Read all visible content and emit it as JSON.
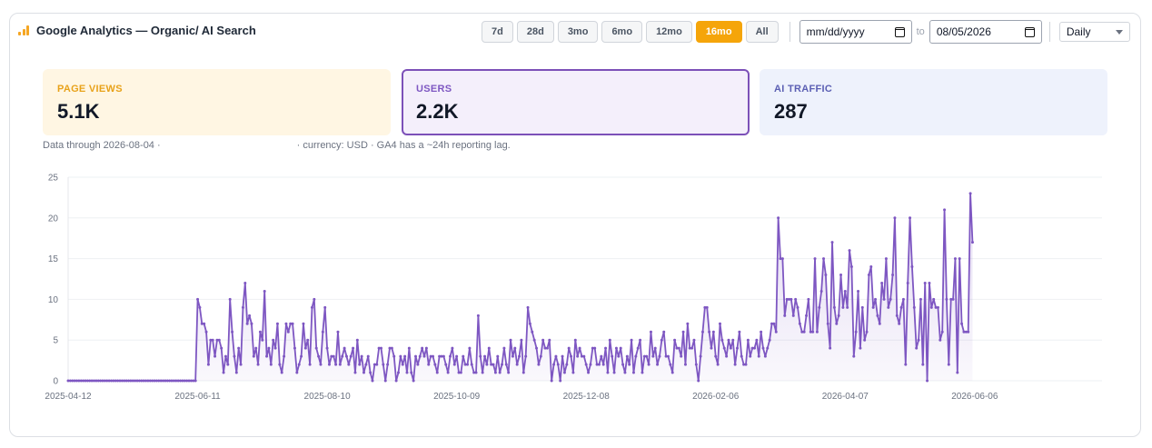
{
  "header": {
    "title": "Google Analytics — Organic/ AI Search",
    "icon": "bar-chart-icon"
  },
  "ranges": [
    {
      "label": "7d",
      "active": false
    },
    {
      "label": "28d",
      "active": false
    },
    {
      "label": "3mo",
      "active": false
    },
    {
      "label": "6mo",
      "active": false
    },
    {
      "label": "12mo",
      "active": false
    },
    {
      "label": "16mo",
      "active": true
    },
    {
      "label": "All",
      "active": false
    }
  ],
  "date_from": {
    "placeholder": "mm/dd/yyyy"
  },
  "to_label": "to",
  "date_to": {
    "value": "08/05/2026"
  },
  "granularity": {
    "value": "Daily"
  },
  "kpis": {
    "page_views": {
      "label": "PAGE VIEWS",
      "value": "5.1K"
    },
    "users": {
      "label": "USERS",
      "value": "2.2K"
    },
    "ai_traffic": {
      "label": "AI TRAFFIC",
      "value": "287"
    }
  },
  "note": {
    "prefix": "Data through 2026-08-04 ·",
    "suffix": "· currency: USD · GA4 has a ~24h reporting lag."
  },
  "colors": {
    "accent": "#f5a50a",
    "series": "#7e57c2"
  },
  "chart_data": {
    "type": "area",
    "title": "",
    "xlabel": "",
    "ylabel": "",
    "ylim": [
      0,
      25
    ],
    "yticks": [
      0,
      5,
      10,
      15,
      20,
      25
    ],
    "xlim": [
      "2025-04-12",
      "2026-08-04"
    ],
    "xticks": [
      "2025-04-12",
      "2025-06-11",
      "2025-08-10",
      "2025-10-09",
      "2025-12-08",
      "2026-02-06",
      "2026-04-07",
      "2026-06-06"
    ],
    "grid": true,
    "series": [
      {
        "start": "2025-04-12",
        "interval": "day",
        "values": [
          0,
          0,
          0,
          0,
          0,
          0,
          0,
          0,
          0,
          0,
          0,
          0,
          0,
          0,
          0,
          0,
          0,
          0,
          0,
          0,
          0,
          0,
          0,
          0,
          0,
          0,
          0,
          0,
          0,
          0,
          0,
          0,
          0,
          0,
          0,
          0,
          0,
          0,
          0,
          0,
          0,
          0,
          0,
          0,
          0,
          0,
          0,
          0,
          0,
          0,
          0,
          0,
          0,
          0,
          0,
          0,
          0,
          0,
          0,
          0,
          10,
          9,
          7,
          7,
          6,
          2,
          5,
          5,
          3,
          5,
          5,
          4,
          1,
          3,
          2,
          10,
          6,
          3,
          1,
          4,
          2,
          9,
          12,
          7,
          8,
          7,
          3,
          4,
          2,
          6,
          5,
          11,
          3,
          4,
          2,
          5,
          4,
          7,
          2,
          1,
          3,
          7,
          6,
          7,
          7,
          4,
          1,
          2,
          3,
          7,
          4,
          5,
          2,
          9,
          10,
          4,
          3,
          2,
          6,
          9,
          4,
          2,
          3,
          3,
          2,
          6,
          2,
          3,
          4,
          3,
          2,
          3,
          4,
          1,
          5,
          2,
          3,
          1,
          2,
          3,
          1,
          0,
          2,
          2,
          4,
          4,
          2,
          0,
          2,
          4,
          4,
          3,
          0,
          1,
          3,
          2,
          3,
          1,
          4,
          1,
          0,
          3,
          2,
          3,
          4,
          3,
          4,
          2,
          3,
          3,
          2,
          1,
          3,
          3,
          3,
          2,
          1,
          3,
          4,
          2,
          3,
          1,
          1,
          3,
          2,
          2,
          4,
          2,
          1,
          1,
          8,
          3,
          1,
          3,
          2,
          4,
          2,
          2,
          1,
          3,
          1,
          2,
          4,
          2,
          1,
          5,
          3,
          4,
          2,
          3,
          5,
          1,
          3,
          9,
          7,
          6,
          5,
          4,
          2,
          3,
          5,
          4,
          4,
          5,
          0,
          2,
          3,
          2,
          0,
          3,
          1,
          2,
          4,
          3,
          1,
          5,
          3,
          4,
          3,
          3,
          2,
          1,
          2,
          4,
          4,
          2,
          2,
          3,
          2,
          4,
          1,
          5,
          3,
          1,
          4,
          3,
          4,
          2,
          1,
          3,
          2,
          5,
          1,
          3,
          4,
          5,
          1,
          3,
          3,
          2,
          6,
          3,
          4,
          2,
          3,
          5,
          6,
          3,
          3,
          2,
          1,
          5,
          4,
          4,
          3,
          6,
          2,
          7,
          4,
          4,
          5,
          2,
          0,
          3,
          6,
          9,
          9,
          6,
          4,
          6,
          3,
          2,
          7,
          5,
          4,
          3,
          5,
          4,
          5,
          2,
          4,
          6,
          3,
          2,
          2,
          5,
          3,
          4,
          4,
          5,
          3,
          6,
          4,
          3,
          4,
          5,
          7,
          7,
          6,
          20,
          15,
          15,
          8,
          10,
          10,
          10,
          8,
          10,
          9,
          7,
          6,
          6,
          8,
          10,
          6,
          6,
          15,
          6,
          9,
          11,
          15,
          13,
          7,
          4,
          17,
          9,
          7,
          8,
          13,
          9,
          11,
          9,
          16,
          14,
          3,
          6,
          11,
          4,
          9,
          5,
          6,
          13,
          14,
          9,
          10,
          8,
          7,
          12,
          10,
          15,
          9,
          10,
          13,
          20,
          8,
          7,
          9,
          10,
          2,
          12,
          20,
          14,
          9,
          4,
          5,
          10,
          2,
          12,
          0,
          12,
          9,
          10,
          9,
          9,
          5,
          6,
          21,
          10,
          2,
          10,
          10,
          15,
          1,
          15,
          7,
          6,
          6,
          6,
          23,
          17
        ]
      }
    ]
  }
}
